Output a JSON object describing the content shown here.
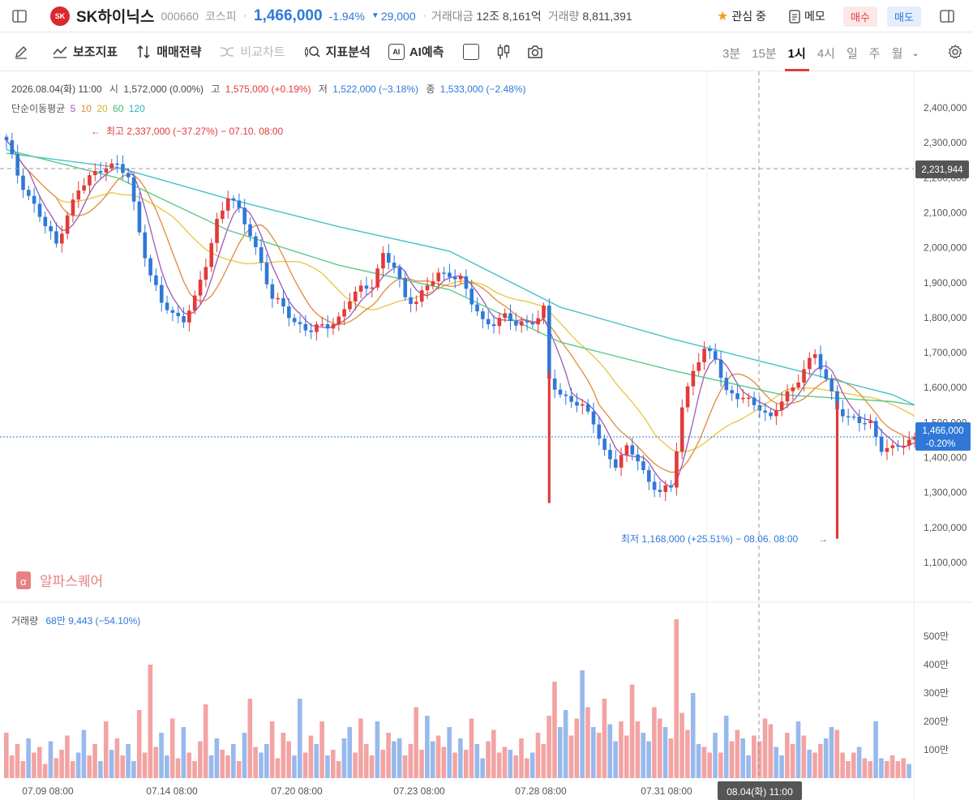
{
  "header": {
    "logo_text": "SK",
    "name": "SK하이닉스",
    "code": "000660",
    "market": "코스피",
    "price": "1,466,000",
    "change_pct": "-1.94%",
    "change_abs": "29,000",
    "trade_value_label": "거래대금",
    "trade_value": "12조 8,161억",
    "volume_label": "거래량",
    "volume": "8,811,391",
    "watch_label": "관심 중",
    "memo_label": "메모",
    "buy_label": "매수",
    "sell_label": "매도"
  },
  "toolbar": {
    "indicators": "보조지표",
    "strategy": "매매전략",
    "compare": "비교차트",
    "analysis": "지표분석",
    "ai_predict": "AI예측",
    "ai_chip": "AI",
    "periods": [
      "3분",
      "15분",
      "1시",
      "4시",
      "일",
      "주",
      "월"
    ],
    "active_period": "1시"
  },
  "info": {
    "date": "2026.08.04(화) 11:00",
    "open_label": "시",
    "open": "1,572,000 (0.00%)",
    "high_label": "고",
    "high": "1,575,000 (+0.19%)",
    "low_label": "저",
    "low": "1,522,000 (−3.18%)",
    "close_label": "종",
    "close": "1,533,000 (−2.48%)",
    "ma_label": "단순이동평균",
    "ma_periods": [
      "5",
      "10",
      "20",
      "60",
      "120"
    ]
  },
  "annotations": {
    "max_text": "최고 2,337,000 (−37.27%) − 07.10. 08:00",
    "min_text": "최저 1,168,000 (+25.51%) − 08.06. 08:00"
  },
  "watermark": "알파스퀘어",
  "volume_info": {
    "label": "거래량",
    "value": "68만 9,443 (−54.10%)"
  },
  "crosshair": {
    "price_tag": "2,231,944",
    "time_tag": "08.04(화) 11:00"
  },
  "last_tag": {
    "price": "1,466,000",
    "pct": "-0.20%"
  },
  "colors": {
    "up": "#e23a3a",
    "down": "#2f78d8",
    "ma5": "#9b59b6",
    "ma10": "#e08a3c",
    "ma20": "#e7c53f",
    "ma60": "#5cc98a",
    "ma120": "#46c1c9",
    "vol_up": "#f3a3a3",
    "vol_down": "#98b9ec"
  },
  "chart_data": {
    "type": "candlestick",
    "price_axis": {
      "ticks": [
        1100000,
        1200000,
        1300000,
        1400000,
        1500000,
        1600000,
        1700000,
        1800000,
        1900000,
        2000000,
        2100000,
        2200000,
        2300000,
        2400000
      ],
      "tick_labels": [
        "1,100,000",
        "1,200,000",
        "1,300,000",
        "1,400,000",
        "1,500,000",
        "1,600,000",
        "1,700,000",
        "1,800,000",
        "1,900,000",
        "2,000,000",
        "2,100,000",
        "2,200,000",
        "2,300,000",
        "2,400,000"
      ]
    },
    "volume_axis": {
      "ticks": [
        100,
        200,
        300,
        400,
        500
      ],
      "tick_labels": [
        "100만",
        "200만",
        "300만",
        "400만",
        "500만"
      ]
    },
    "time_labels": [
      "07.09 08:00",
      "07.14 08:00",
      "07.20 08:00",
      "07.23 08:00",
      "07.28 08:00",
      "07.31 08:00"
    ],
    "close_path": [
      [
        0,
        2300000
      ],
      [
        2,
        2210000
      ],
      [
        4,
        2150000
      ],
      [
        7,
        2060000
      ],
      [
        9,
        2010000
      ],
      [
        11,
        2100000
      ],
      [
        13,
        2160000
      ],
      [
        15,
        2200000
      ],
      [
        18,
        2240000
      ],
      [
        20,
        2230000
      ],
      [
        22,
        2200000
      ],
      [
        24,
        2050000
      ],
      [
        26,
        1920000
      ],
      [
        28,
        1840000
      ],
      [
        30,
        1810000
      ],
      [
        32,
        1800000
      ],
      [
        34,
        1850000
      ],
      [
        36,
        1950000
      ],
      [
        38,
        2080000
      ],
      [
        40,
        2150000
      ],
      [
        42,
        2100000
      ],
      [
        44,
        2040000
      ],
      [
        46,
        1960000
      ],
      [
        48,
        1850000
      ],
      [
        50,
        1830000
      ],
      [
        52,
        1790000
      ],
      [
        55,
        1760000
      ],
      [
        58,
        1780000
      ],
      [
        60,
        1800000
      ],
      [
        62,
        1850000
      ],
      [
        64,
        1880000
      ],
      [
        66,
        1900000
      ],
      [
        68,
        1980000
      ],
      [
        70,
        1940000
      ],
      [
        72,
        1860000
      ],
      [
        74,
        1850000
      ],
      [
        76,
        1890000
      ],
      [
        78,
        1920000
      ],
      [
        80,
        1930000
      ],
      [
        82,
        1910000
      ],
      [
        84,
        1840000
      ],
      [
        86,
        1790000
      ],
      [
        88,
        1790000
      ],
      [
        90,
        1800000
      ],
      [
        92,
        1780000
      ],
      [
        94,
        1790000
      ],
      [
        96,
        1800000
      ],
      [
        97,
        1820000
      ],
      [
        98,
        1620000
      ],
      [
        100,
        1580000
      ],
      [
        102,
        1570000
      ],
      [
        104,
        1540000
      ],
      [
        106,
        1500000
      ],
      [
        108,
        1420000
      ],
      [
        110,
        1380000
      ],
      [
        112,
        1420000
      ],
      [
        114,
        1400000
      ],
      [
        116,
        1330000
      ],
      [
        118,
        1300000
      ],
      [
        120,
        1310000
      ],
      [
        122,
        1550000
      ],
      [
        124,
        1650000
      ],
      [
        126,
        1700000
      ],
      [
        128,
        1690000
      ],
      [
        130,
        1590000
      ],
      [
        132,
        1570000
      ],
      [
        134,
        1560000
      ],
      [
        136,
        1550000
      ],
      [
        138,
        1510000
      ],
      [
        140,
        1560000
      ],
      [
        142,
        1600000
      ],
      [
        144,
        1660000
      ],
      [
        146,
        1690000
      ],
      [
        148,
        1620000
      ],
      [
        150,
        1550000
      ],
      [
        152,
        1510000
      ],
      [
        154,
        1500000
      ],
      [
        156,
        1500000
      ],
      [
        158,
        1430000
      ],
      [
        160,
        1420000
      ],
      [
        162,
        1440000
      ],
      [
        164,
        1460000
      ]
    ],
    "spikes": [
      {
        "x": 98,
        "low": 1270000
      },
      {
        "x": 150,
        "low": 1168000
      }
    ],
    "moving_averages": [
      {
        "period": "120",
        "points": [
          [
            0,
            2270000
          ],
          [
            20,
            2230000
          ],
          [
            40,
            2140000
          ],
          [
            60,
            2060000
          ],
          [
            80,
            1990000
          ],
          [
            100,
            1830000
          ],
          [
            120,
            1740000
          ],
          [
            140,
            1660000
          ],
          [
            160,
            1580000
          ],
          [
            164,
            1550000
          ]
        ]
      },
      {
        "period": "60",
        "points": [
          [
            0,
            2280000
          ],
          [
            20,
            2200000
          ],
          [
            40,
            2050000
          ],
          [
            60,
            1950000
          ],
          [
            80,
            1880000
          ],
          [
            100,
            1730000
          ],
          [
            120,
            1650000
          ],
          [
            140,
            1580000
          ],
          [
            160,
            1560000
          ],
          [
            164,
            1550000
          ]
        ]
      }
    ],
    "volume_pattern": [
      160,
      80,
      120,
      60,
      140,
      90,
      110,
      50,
      130,
      70,
      100,
      150,
      60,
      90,
      170,
      80,
      120,
      60,
      200,
      100,
      140,
      80,
      120,
      60,
      240,
      90,
      400,
      110,
      160,
      80,
      210,
      70,
      180,
      90,
      60,
      130,
      260,
      80,
      140,
      100,
      80,
      120,
      60,
      160,
      280,
      110,
      90,
      120,
      200,
      70,
      160,
      130,
      80,
      280,
      90,
      150,
      120,
      200,
      80,
      100,
      60,
      140,
      180,
      90,
      210,
      120,
      80,
      200,
      100,
      160,
      130,
      140,
      80,
      120,
      250,
      100,
      220,
      130,
      150,
      110,
      180,
      90,
      140,
      100,
      210,
      120,
      70,
      130,
      170,
      90,
      110,
      100,
      80,
      140,
      70,
      90,
      160,
      120,
      220,
      340,
      180,
      240,
      150,
      210,
      380,
      250,
      180,
      160,
      280,
      190,
      130,
      200,
      150,
      330,
      200,
      160,
      130,
      250,
      210,
      180,
      140,
      560,
      230,
      170,
      300,
      120,
      110,
      90,
      160,
      90,
      220,
      130,
      170,
      140,
      80,
      150,
      130,
      210,
      190,
      110,
      80,
      160,
      120,
      200,
      150,
      100,
      90,
      120,
      140,
      180,
      170,
      90,
      60,
      90,
      110,
      70,
      60,
      200,
      70,
      60,
      80,
      60,
      70,
      50
    ]
  }
}
